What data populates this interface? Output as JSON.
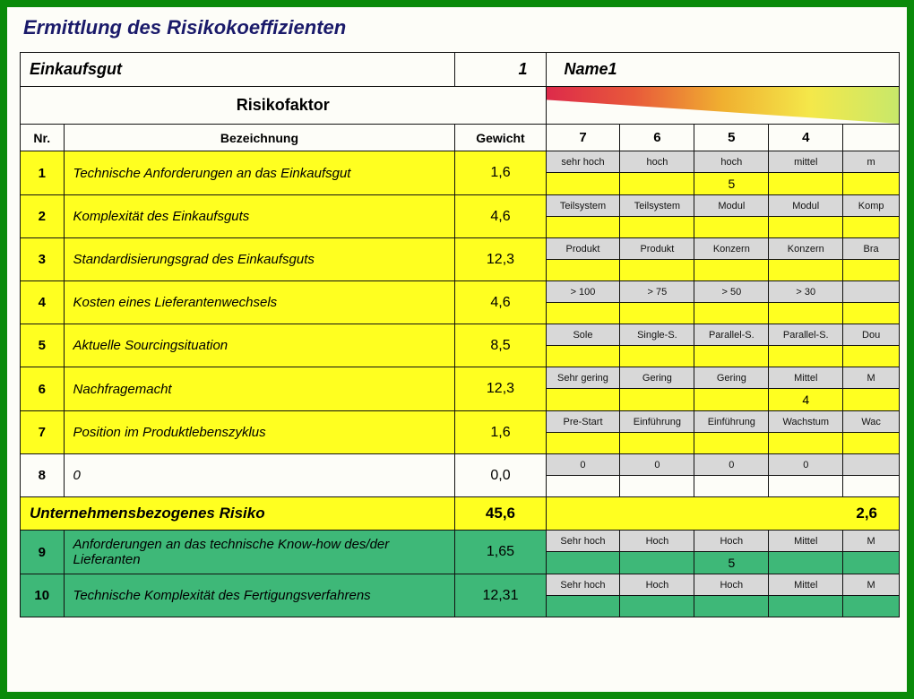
{
  "page_title": "Ermittlung des Risikokoeffizienten",
  "header": {
    "einkaufsgut_label": "Einkaufsgut",
    "einkaufsgut_value": "1",
    "name_value": "Name1"
  },
  "section_header": {
    "risikofaktor": "Risikofaktor",
    "nr": "Nr.",
    "bezeichnung": "Bezeichnung",
    "gewicht": "Gewicht"
  },
  "rating_headers": [
    "7",
    "6",
    "5",
    "4"
  ],
  "colors": {
    "yellow": "#ffff20",
    "green": "#3eb878",
    "scale_bg": "#d8d8d8",
    "border": "#111111",
    "gradient": [
      "#dd2a4a",
      "#e85a3a",
      "#f0b030",
      "#f4e84a",
      "#c8e86a"
    ]
  },
  "rows": [
    {
      "nr": "1",
      "desc": "Technische Anforderungen an das Einkaufsgut",
      "weight": "1,6",
      "color": "yellow",
      "labels": [
        "sehr hoch",
        "hoch",
        "hoch",
        "mittel",
        "m"
      ],
      "values": [
        "",
        "",
        "5",
        "",
        ""
      ]
    },
    {
      "nr": "2",
      "desc": "Komplexität des Einkaufsguts",
      "weight": "4,6",
      "color": "yellow",
      "labels": [
        "Teilsystem",
        "Teilsystem",
        "Modul",
        "Modul",
        "Komp"
      ],
      "values": [
        "",
        "",
        "",
        "",
        ""
      ]
    },
    {
      "nr": "3",
      "desc": "Standardisierungsgrad des Einkaufsguts",
      "weight": "12,3",
      "color": "yellow",
      "labels": [
        "Produkt",
        "Produkt",
        "Konzern",
        "Konzern",
        "Bra"
      ],
      "values": [
        "",
        "",
        "",
        "",
        ""
      ]
    },
    {
      "nr": "4",
      "desc": "Kosten eines Lieferantenwechsels",
      "weight": "4,6",
      "color": "yellow",
      "labels": [
        "> 100",
        "> 75",
        "> 50",
        "> 30",
        ""
      ],
      "values": [
        "",
        "",
        "",
        "",
        ""
      ]
    },
    {
      "nr": "5",
      "desc": "Aktuelle Sourcingsituation",
      "weight": "8,5",
      "color": "yellow",
      "labels": [
        "Sole",
        "Single-S.",
        "Parallel-S.",
        "Parallel-S.",
        "Dou"
      ],
      "values": [
        "",
        "",
        "",
        "",
        ""
      ]
    },
    {
      "nr": "6",
      "desc": "Nachfragemacht",
      "weight": "12,3",
      "color": "yellow",
      "labels": [
        "Sehr gering",
        "Gering",
        "Gering",
        "Mittel",
        "M"
      ],
      "values": [
        "",
        "",
        "",
        "4",
        ""
      ]
    },
    {
      "nr": "7",
      "desc": "Position im Produktlebenszyklus",
      "weight": "1,6",
      "color": "yellow",
      "labels": [
        "Pre-Start",
        "Einführung",
        "Einführung",
        "Wachstum",
        "Wac"
      ],
      "values": [
        "",
        "",
        "",
        "",
        ""
      ]
    },
    {
      "nr": "8",
      "desc": "0",
      "weight": "0,0",
      "color": "none",
      "labels": [
        "0",
        "0",
        "0",
        "0",
        ""
      ],
      "values": [
        "",
        "",
        "",
        "",
        ""
      ]
    }
  ],
  "summary": {
    "label": "Unternehmensbezogenes Risiko",
    "weight": "45,6",
    "result": "2,6"
  },
  "rows2": [
    {
      "nr": "9",
      "desc": "Anforderungen an das technische Know-how des/der Lieferanten",
      "weight": "1,65",
      "color": "green",
      "labels": [
        "Sehr hoch",
        "Hoch",
        "Hoch",
        "Mittel",
        "M"
      ],
      "values": [
        "",
        "",
        "5",
        "",
        ""
      ]
    },
    {
      "nr": "10",
      "desc": "Technische Komplexität des Fertigungsverfahrens",
      "weight": "12,31",
      "color": "green",
      "labels": [
        "Sehr hoch",
        "Hoch",
        "Hoch",
        "Mittel",
        "M"
      ],
      "values": [
        "",
        "",
        "",
        "",
        ""
      ]
    }
  ]
}
